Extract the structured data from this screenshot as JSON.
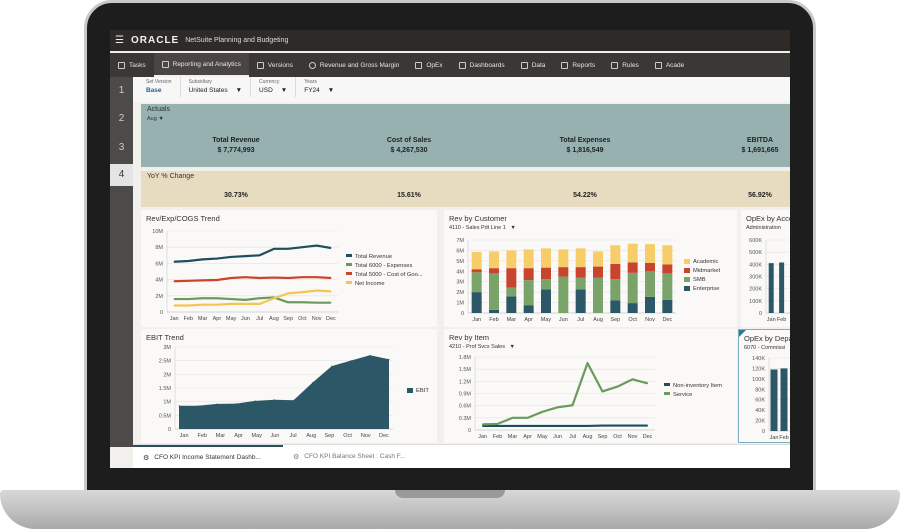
{
  "app": {
    "logo": "ORACLE",
    "title": "NetSuite Planning and Budgeting"
  },
  "nav": [
    {
      "label": "Tasks",
      "icon": "clipboard-icon"
    },
    {
      "label": "Reporting and Analytics",
      "icon": "report-icon",
      "active": true
    },
    {
      "label": "Versions",
      "icon": "versions-icon"
    },
    {
      "label": "Revenue and Gross Margin",
      "icon": "person-icon"
    },
    {
      "label": "OpEx",
      "icon": "opex-icon"
    },
    {
      "label": "Dashboards",
      "icon": "dashboard-icon"
    },
    {
      "label": "Data",
      "icon": "data-icon"
    },
    {
      "label": "Reports",
      "icon": "reports-icon"
    },
    {
      "label": "Rules",
      "icon": "rules-icon"
    },
    {
      "label": "Acade",
      "icon": "academy-icon"
    }
  ],
  "rows": [
    "1",
    "2",
    "3",
    "4"
  ],
  "filters": [
    {
      "label": "Set Version",
      "value": "Base"
    },
    {
      "label": "Subsidiary",
      "value": "United States"
    },
    {
      "label": "Currency",
      "value": "USD"
    },
    {
      "label": "Years",
      "value": "FY24"
    }
  ],
  "actuals": {
    "title": "Actuals",
    "period": "Aug",
    "kpis": [
      {
        "label": "Total Revenue",
        "value": "$ 7,774,993"
      },
      {
        "label": "Cost of Sales",
        "value": "$ 4,267,530"
      },
      {
        "label": "Total Expenses",
        "value": "$ 1,816,549"
      },
      {
        "label": "EBITDA",
        "value": "$ 1,691,665"
      }
    ]
  },
  "yoy": {
    "title": "YoY % Change",
    "values": [
      "30.73%",
      "15.61%",
      "54.22%",
      "56.92%"
    ]
  },
  "colors": {
    "revenue": "#1f4e5f",
    "expenses": "#6b9b5c",
    "cogs": "#c8442f",
    "net_income": "#f5c451",
    "actuals_bg": "#97b0b0",
    "yoy_bg": "#e7dcc0"
  },
  "panels": [
    {
      "title": "Rev/Exp/COGS Trend",
      "subtitle": ""
    },
    {
      "title": "Rev by Customer",
      "subtitle": "4110 - Sales Pdt Line 1"
    },
    {
      "title": "OpEx by Acco",
      "subtitle": "Administration"
    },
    {
      "title": "EBIT Trend",
      "subtitle": ""
    },
    {
      "title": "Rev by Item",
      "subtitle": "4210 - Prof Svcs Sales"
    },
    {
      "title": "OpEx by Depa",
      "subtitle": "6070 - Commissi"
    }
  ],
  "chart_data": [
    {
      "type": "line",
      "categories": [
        "Jan",
        "Feb",
        "Mar",
        "Apr",
        "May",
        "Jun",
        "Jul",
        "Aug",
        "Sep",
        "Oct",
        "Nov",
        "Dec"
      ],
      "ylim": [
        0,
        10
      ],
      "y_tick_labels": [
        "0",
        "2M",
        "4M",
        "6M",
        "8M",
        "10M"
      ],
      "legend": "right",
      "grid": true,
      "series": [
        {
          "name": "Total Revenue",
          "color": "#1f4e5f",
          "values": [
            6.2,
            6.3,
            6.5,
            6.6,
            6.8,
            6.9,
            7.0,
            7.8,
            7.8,
            8.0,
            8.2,
            7.9
          ]
        },
        {
          "name": "Total 6000 - Expenses",
          "color": "#6b9b5c",
          "values": [
            1.6,
            1.6,
            1.7,
            1.7,
            1.6,
            1.5,
            1.7,
            1.8,
            1.2,
            1.2,
            1.15,
            1.15
          ]
        },
        {
          "name": "Total 5000 - Cost of Goo...",
          "color": "#c8442f",
          "values": [
            3.8,
            3.85,
            3.9,
            3.95,
            4.2,
            4.3,
            4.2,
            4.25,
            4.2,
            4.3,
            4.3,
            4.2
          ]
        },
        {
          "name": "Net Income",
          "color": "#f5c451",
          "values": [
            0.8,
            0.8,
            0.9,
            0.9,
            1.0,
            1.0,
            1.0,
            1.7,
            2.3,
            2.45,
            2.65,
            2.55
          ]
        }
      ]
    },
    {
      "type": "stacked-bar",
      "categories": [
        "Jan",
        "Feb",
        "Mar",
        "Apr",
        "May",
        "Jun",
        "Jul",
        "Aug",
        "Sep",
        "Oct",
        "Nov",
        "Dec"
      ],
      "ylim": [
        0,
        7
      ],
      "y_tick_labels": [
        "0",
        "1M",
        "2M",
        "3M",
        "4M",
        "5M",
        "6M",
        "7M"
      ],
      "legend": "right",
      "grid": true,
      "series": [
        {
          "name": "Enterprise",
          "color": "#2c5766",
          "values": [
            2.0,
            0.3,
            1.6,
            0.75,
            2.25,
            0,
            2.25,
            0,
            1.2,
            0.95,
            1.55,
            1.25
          ]
        },
        {
          "name": "SMB",
          "color": "#7aa36a",
          "values": [
            1.9,
            3.5,
            0.85,
            2.4,
            1.0,
            3.5,
            1.15,
            3.4,
            2.05,
            2.9,
            2.45,
            2.55
          ]
        },
        {
          "name": "Midmarket",
          "color": "#c8442f",
          "values": [
            0.3,
            0.5,
            1.85,
            1.15,
            1.1,
            0.9,
            1.0,
            1.05,
            1.45,
            1.0,
            0.8,
            0.85
          ]
        },
        {
          "name": "Academic",
          "color": "#f7cd6a",
          "values": [
            1.65,
            1.6,
            1.7,
            1.8,
            1.85,
            1.7,
            1.8,
            1.45,
            1.8,
            1.8,
            1.8,
            1.85
          ]
        }
      ]
    },
    {
      "type": "bar",
      "categories": [
        "Jan",
        "Feb"
      ],
      "ylim": [
        0,
        600
      ],
      "y_tick_labels": [
        "0",
        "100K",
        "200K",
        "300K",
        "400K",
        "500K",
        "600K"
      ],
      "grid": true,
      "series": [
        {
          "color": "#2c5766",
          "values": [
            410,
            415
          ]
        }
      ]
    },
    {
      "type": "area",
      "categories": [
        "Jan",
        "Feb",
        "Mar",
        "Apr",
        "May",
        "Jun",
        "Jul",
        "Aug",
        "Sep",
        "Oct",
        "Nov",
        "Dec"
      ],
      "ylim": [
        0,
        3
      ],
      "y_tick_labels": [
        "0",
        "0.5M",
        "1M",
        "1.5M",
        "2M",
        "2.5M",
        "3M"
      ],
      "legend": "right",
      "grid": true,
      "series": [
        {
          "name": "EBIT",
          "color": "#2c5766",
          "values": [
            0.85,
            0.85,
            0.92,
            0.93,
            1.03,
            1.07,
            1.05,
            1.7,
            2.3,
            2.5,
            2.7,
            2.55
          ]
        }
      ]
    },
    {
      "type": "line",
      "categories": [
        "Jan",
        "Feb",
        "Mar",
        "Apr",
        "May",
        "Jun",
        "Jul",
        "Aug",
        "Sep",
        "Oct",
        "Nov",
        "Dec"
      ],
      "ylim": [
        0,
        1.8
      ],
      "y_tick_labels": [
        "0",
        "0.3M",
        "0.6M",
        "0.9M",
        "1.2M",
        "1.5M",
        "1.8M"
      ],
      "legend": "right",
      "grid": true,
      "series": [
        {
          "name": "Non-inventory Item",
          "color": "#1f4e5f",
          "values": [
            0.1,
            0.1,
            0.1,
            0.1,
            0.1,
            0.1,
            0.1,
            0.1,
            0.11,
            0.11,
            0.11,
            0.11
          ]
        },
        {
          "name": "Service",
          "color": "#6b9b5c",
          "values": [
            0.14,
            0.15,
            0.3,
            0.3,
            0.45,
            0.56,
            0.61,
            1.65,
            0.95,
            1.07,
            1.25,
            1.15
          ]
        }
      ]
    },
    {
      "type": "bar",
      "categories": [
        "Jan",
        "Feb"
      ],
      "ylim": [
        0,
        140
      ],
      "y_tick_labels": [
        "0",
        "20K",
        "40K",
        "60K",
        "80K",
        "100K",
        "120K",
        "140K"
      ],
      "grid": true,
      "series": [
        {
          "color": "#2c5766",
          "values": [
            118,
            120
          ]
        }
      ]
    }
  ],
  "bottom_tabs": [
    {
      "label": "CFO KPI Income Statement Dashb...",
      "active": true
    },
    {
      "label": "CFO KPI Balance Sheet : Cash F...",
      "active": false
    }
  ]
}
